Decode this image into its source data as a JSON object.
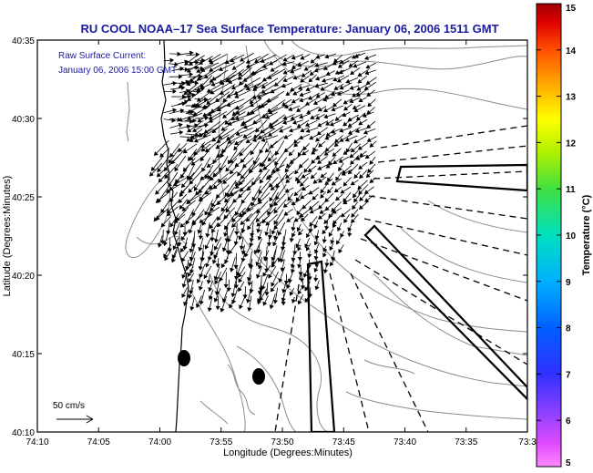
{
  "chart_data": {
    "type": "vector-field",
    "title": "RU COOL  NOAA–17  Sea Surface Temperature:  January 06, 2006 1511 GMT",
    "subtitle_line1": "Raw Surface Current:",
    "subtitle_line2": "January 06, 2006 15:00 GMT",
    "xlabel": "Longitude (Degrees:Minutes)",
    "ylabel": "Latitude (Degrees:Minutes)",
    "x_ticks": [
      "74:10",
      "74:05",
      "74:00",
      "73:55",
      "73:50",
      "73:45",
      "73:40",
      "73:35",
      "73:3"
    ],
    "y_ticks": [
      "40:10",
      "40:15",
      "40:20",
      "40:25",
      "40:30",
      "40:35"
    ],
    "xlim": [
      -74.1667,
      -73.5
    ],
    "ylim": [
      40.1667,
      40.5833
    ],
    "scale_label": "50 cm/s",
    "colorbar": {
      "label": "Temperature (°C)",
      "ticks": [
        "5",
        "6",
        "7",
        "8",
        "9",
        "10",
        "11",
        "12",
        "13",
        "14",
        "15"
      ],
      "range": [
        5,
        15
      ]
    },
    "grid": false,
    "colors": {
      "title": "#1a1aa0",
      "vectors": "#000000",
      "contours": "#8c8c8c",
      "frame": "#000000"
    }
  }
}
